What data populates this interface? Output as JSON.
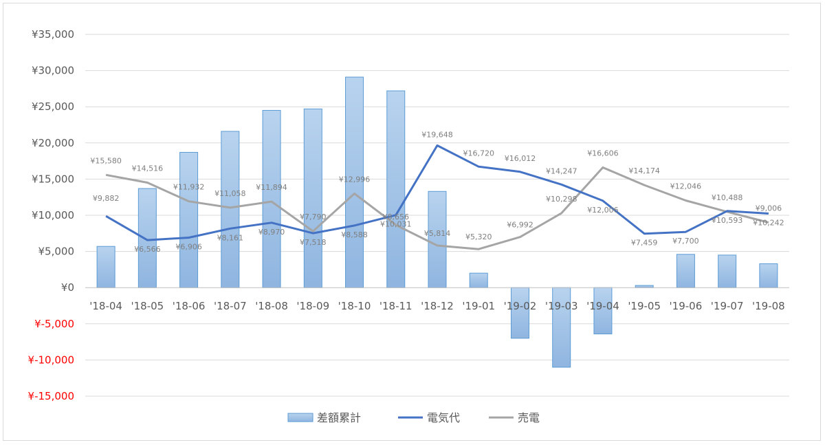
{
  "chart_data": {
    "type": "bar",
    "categories": [
      "'18-04",
      "'18-05",
      "'18-06",
      "'18-07",
      "'18-08",
      "'18-09",
      "'18-10",
      "'18-11",
      "'18-12",
      "'19-01",
      "'19-02",
      "'19-03",
      "'19-04",
      "'19-05",
      "'19-06",
      "'19-07",
      "'19-08"
    ],
    "y_ticks": [
      "¥35,000",
      "¥30,000",
      "¥25,000",
      "¥20,000",
      "¥15,000",
      "¥10,000",
      "¥5,000",
      "¥0",
      "¥-5,000",
      "¥-10,000",
      "¥-15,000"
    ],
    "ylim": [
      -15000,
      35000
    ],
    "grid": true,
    "legend_position": "bottom",
    "negative_tick_color": "#ff0000",
    "series": [
      {
        "name": "差額累計",
        "type": "bar",
        "color": "#9dc3e6",
        "values": [
          5700,
          13700,
          18700,
          21600,
          24500,
          24700,
          29100,
          27200,
          13300,
          2000,
          -7000,
          -11000,
          -6400,
          300,
          4600,
          4500,
          3300
        ]
      },
      {
        "name": "電気代",
        "type": "line",
        "color": "#4472c4",
        "values": [
          9882,
          6566,
          6906,
          8161,
          8970,
          7518,
          8588,
          10031,
          19648,
          16720,
          16012,
          14247,
          12006,
          7459,
          7700,
          10593,
          10242
        ],
        "labels": [
          "¥9,882",
          "¥6,566",
          "¥6,906",
          "¥8,161",
          "¥8,970",
          "¥7,518",
          "¥8,588",
          "¥10,031",
          "¥19,648",
          "¥16,720",
          "¥16,012",
          "¥14,247",
          "¥12,006",
          "¥7,459",
          "¥7,700",
          "¥10,593",
          "¥10,242"
        ]
      },
      {
        "name": "売電",
        "type": "line",
        "color": "#a5a5a5",
        "values": [
          15580,
          14516,
          11932,
          11058,
          11894,
          7790,
          12996,
          8656,
          5814,
          5320,
          6992,
          10298,
          16606,
          14174,
          12046,
          10488,
          9006
        ],
        "labels": [
          "¥15,580",
          "¥14,516",
          "¥11,932",
          "¥11,058",
          "¥11,894",
          "¥7,790",
          "¥12,996",
          "¥8,656",
          "¥5,814",
          "¥5,320",
          "¥6,992",
          "¥10,298",
          "¥16,606",
          "¥14,174",
          "¥12,046",
          "¥10,488",
          "¥9,006"
        ]
      }
    ]
  }
}
